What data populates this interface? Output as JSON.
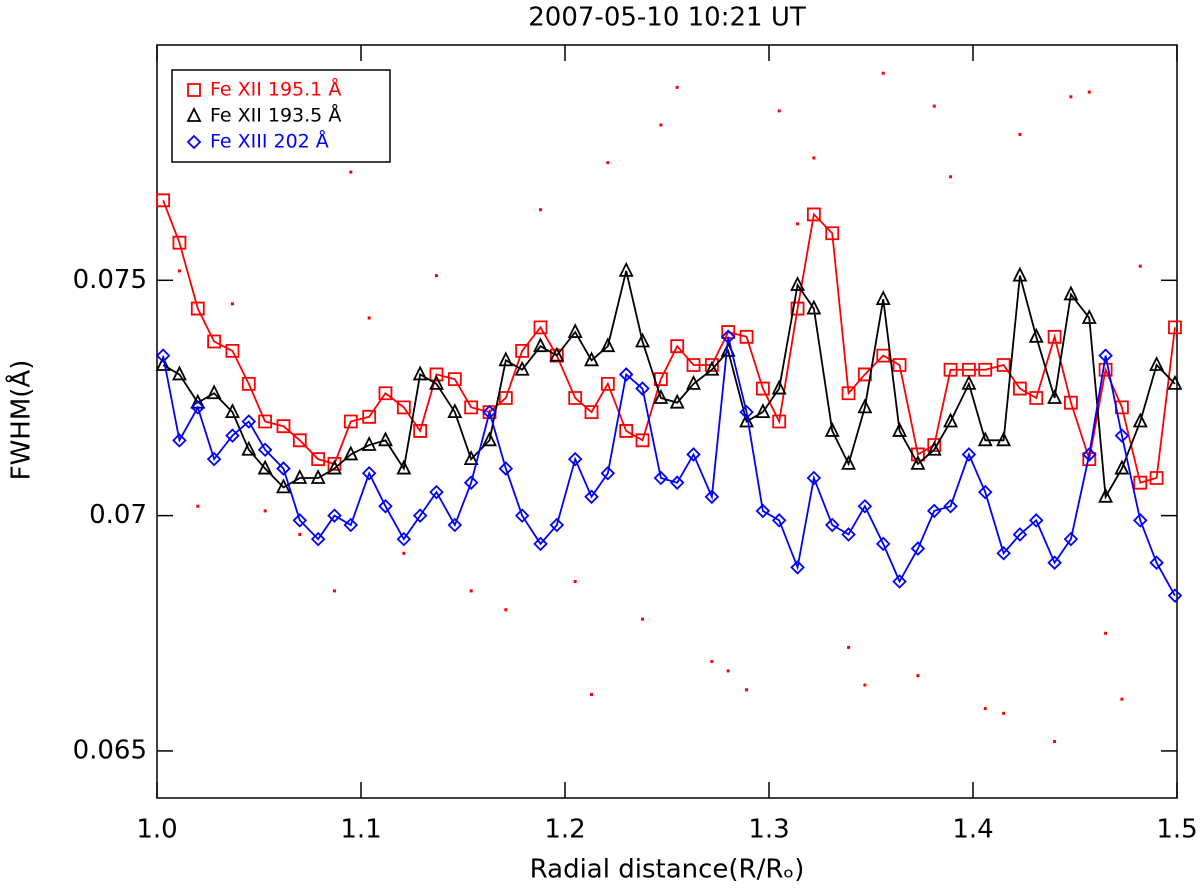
{
  "chart_data": {
    "type": "line",
    "title": "2007-05-10 10:21 UT",
    "x_label": "Radial distance(R/Rₒ)",
    "y_label": "FWHM(Å)",
    "xlim": [
      1.0,
      1.5
    ],
    "ylim": [
      0.064,
      0.08
    ],
    "xticks": [
      {
        "value": 1.0,
        "label": "1.0"
      },
      1.1,
      1.2,
      1.3,
      1.4,
      {
        "value": 1.5,
        "label": "1.5"
      }
    ],
    "yticks": [
      0.065,
      0.07,
      0.075
    ],
    "legend": "upper left",
    "x": [
      1.003,
      1.011,
      1.02,
      1.028,
      1.037,
      1.045,
      1.053,
      1.062,
      1.07,
      1.079,
      1.087,
      1.095,
      1.104,
      1.112,
      1.121,
      1.129,
      1.137,
      1.146,
      1.154,
      1.163,
      1.171,
      1.179,
      1.188,
      1.196,
      1.205,
      1.213,
      1.221,
      1.23,
      1.238,
      1.247,
      1.255,
      1.263,
      1.272,
      1.28,
      1.289,
      1.297,
      1.305,
      1.314,
      1.322,
      1.331,
      1.339,
      1.347,
      1.356,
      1.364,
      1.373,
      1.381,
      1.389,
      1.398,
      1.406,
      1.415,
      1.423,
      1.431,
      1.44,
      1.448,
      1.457,
      1.465,
      1.473,
      1.482,
      1.49,
      1.499
    ],
    "series": [
      {
        "name": "Fe XII 195.1 Å",
        "color": "#ff0000",
        "marker": "square",
        "values": [
          0.0767,
          0.0758,
          0.0744,
          0.0737,
          0.0735,
          0.0728,
          0.072,
          0.0719,
          0.0716,
          0.0712,
          0.0711,
          0.072,
          0.0721,
          0.0726,
          0.0723,
          0.0718,
          0.073,
          0.0729,
          0.0723,
          0.0722,
          0.0725,
          0.0735,
          0.074,
          0.0734,
          0.0725,
          0.0722,
          0.0728,
          0.0718,
          0.0716,
          0.0729,
          0.0736,
          0.0732,
          0.0732,
          0.0739,
          0.0738,
          0.0727,
          0.072,
          0.0744,
          0.0764,
          0.076,
          0.0726,
          0.073,
          0.0734,
          0.0732,
          0.0713,
          0.0715,
          0.0731,
          0.0731,
          0.0731,
          0.0732,
          0.0727,
          0.0725,
          0.0738,
          0.0724,
          0.0712,
          0.0731,
          0.0723,
          0.0707,
          0.0708,
          0.074
        ]
      },
      {
        "name": "Fe XII 193.5 Å",
        "color": "#000000",
        "marker": "triangle",
        "values": [
          0.0732,
          0.073,
          0.0724,
          0.0726,
          0.0722,
          0.0714,
          0.071,
          0.0706,
          0.0708,
          0.0708,
          0.071,
          0.0713,
          0.0715,
          0.0716,
          0.071,
          0.073,
          0.0728,
          0.0722,
          0.0712,
          0.0716,
          0.0733,
          0.0731,
          0.0736,
          0.0734,
          0.0739,
          0.0733,
          0.0736,
          0.0752,
          0.0737,
          0.0725,
          0.0724,
          0.0728,
          0.0731,
          0.0735,
          0.072,
          0.0722,
          0.0727,
          0.0749,
          0.0744,
          0.0718,
          0.0711,
          0.0723,
          0.0746,
          0.0718,
          0.0711,
          0.0714,
          0.072,
          0.0728,
          0.0716,
          0.0716,
          0.0751,
          0.0738,
          0.0725,
          0.0747,
          0.0742,
          0.0704,
          0.071,
          0.072,
          0.0732,
          0.0728
        ]
      },
      {
        "name": "Fe XIII 202 Å",
        "color": "#0000ff",
        "marker": "diamond",
        "values": [
          0.0734,
          0.0716,
          0.0723,
          0.0712,
          0.0717,
          0.072,
          0.0714,
          0.071,
          0.0699,
          0.0695,
          0.07,
          0.0698,
          0.0709,
          0.0702,
          0.0695,
          0.07,
          0.0705,
          0.0698,
          0.0707,
          0.0722,
          0.071,
          0.07,
          0.0694,
          0.0698,
          0.0712,
          0.0704,
          0.0709,
          0.073,
          0.0727,
          0.0708,
          0.0707,
          0.0713,
          0.0704,
          0.0738,
          0.0722,
          0.0701,
          0.0699,
          0.0689,
          0.0708,
          0.0698,
          0.0696,
          0.0702,
          0.0694,
          0.0686,
          0.0693,
          0.0701,
          0.0702,
          0.0713,
          0.0705,
          0.0692,
          0.0696,
          0.0699,
          0.069,
          0.0695,
          0.0713,
          0.0734,
          0.0717,
          0.0699,
          0.069,
          0.0683
        ]
      }
    ],
    "scatter": {
      "color": "#ff0000",
      "x": [
        1.011,
        1.02,
        1.037,
        1.053,
        1.07,
        1.087,
        1.095,
        1.104,
        1.121,
        1.137,
        1.154,
        1.171,
        1.188,
        1.205,
        1.221,
        1.238,
        1.255,
        1.272,
        1.289,
        1.305,
        1.322,
        1.339,
        1.356,
        1.373,
        1.389,
        1.406,
        1.423,
        1.44,
        1.457,
        1.473,
        1.482,
        1.465,
        1.448,
        1.415,
        1.381,
        1.347,
        1.314,
        1.28,
        1.247,
        1.213
      ],
      "y": [
        0.0752,
        0.0702,
        0.0745,
        0.0701,
        0.0696,
        0.0684,
        0.0773,
        0.0742,
        0.0692,
        0.0751,
        0.0684,
        0.068,
        0.0765,
        0.0686,
        0.0775,
        0.0678,
        0.0791,
        0.0669,
        0.0663,
        0.0786,
        0.0776,
        0.0672,
        0.0794,
        0.0666,
        0.0772,
        0.0659,
        0.0781,
        0.0652,
        0.079,
        0.0661,
        0.0753,
        0.0675,
        0.0789,
        0.0658,
        0.0787,
        0.0664,
        0.0762,
        0.0667,
        0.0783,
        0.0662
      ]
    }
  }
}
